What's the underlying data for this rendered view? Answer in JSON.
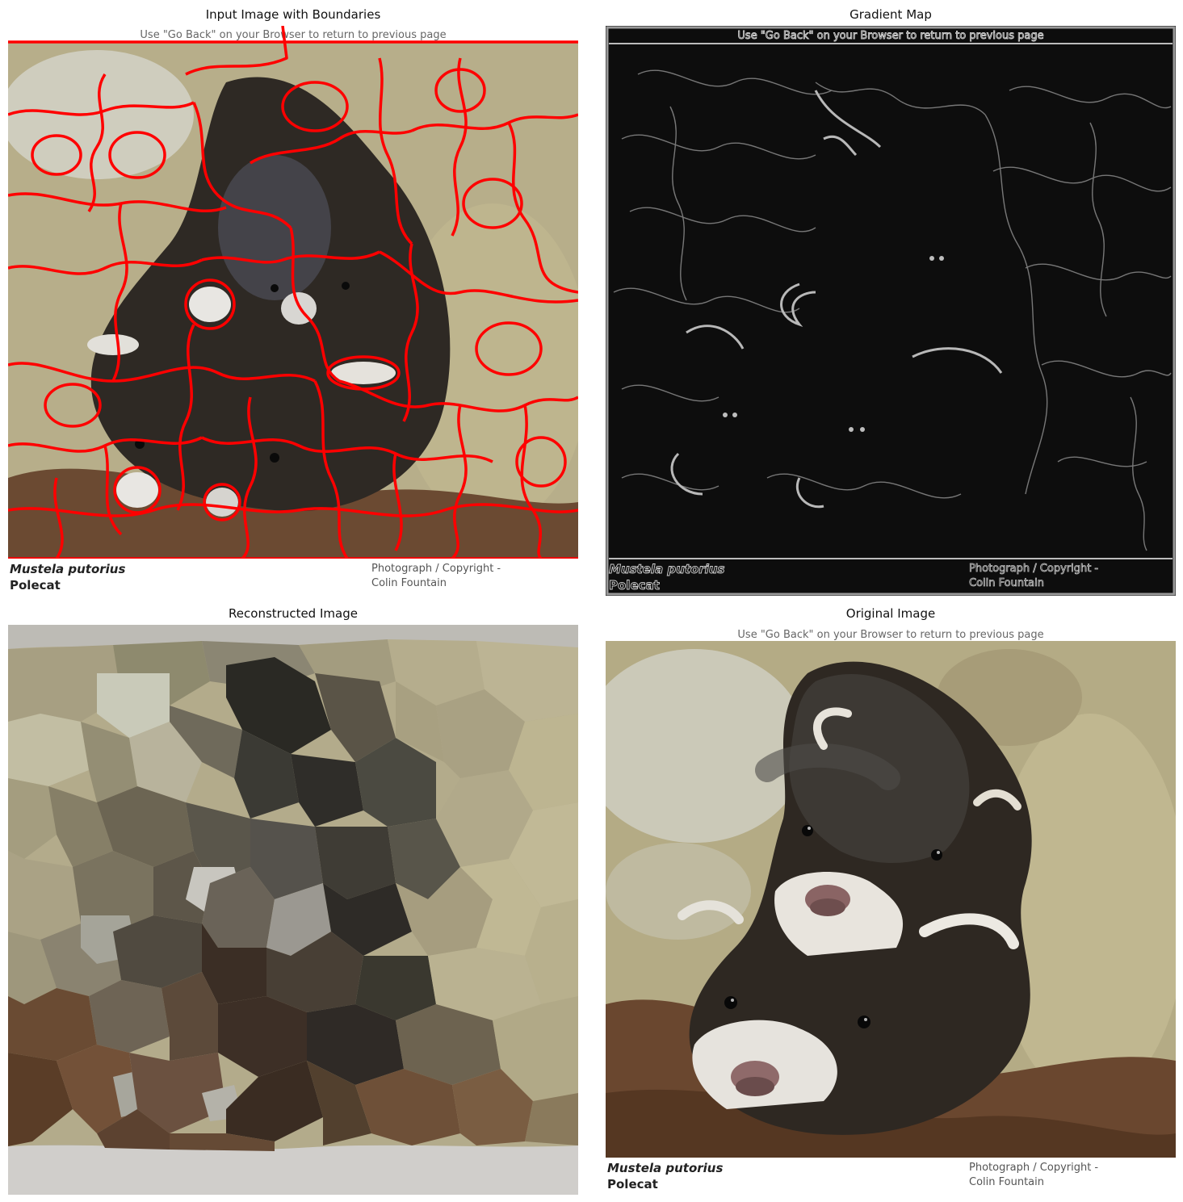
{
  "panels": {
    "boundaries": {
      "title": "Input Image with Boundaries"
    },
    "gradient": {
      "title": "Gradient Map"
    },
    "reconstructed": {
      "title": "Reconstructed Image"
    },
    "original": {
      "title": "Original Image"
    }
  },
  "photo": {
    "header": "Use \"Go Back\" on your Browser to return to previous page",
    "species": "Mustela putorius",
    "common_name": "Polecat",
    "credit_line1": "Photograph / Copyright -",
    "credit_line2": "Colin Fountain"
  },
  "colors": {
    "boundary": "#ff0000",
    "rock": "#b9b08a",
    "fur_dark": "#2f2a24",
    "soil": "#6a4a30",
    "gradient_bg": "#0d0d0d"
  }
}
